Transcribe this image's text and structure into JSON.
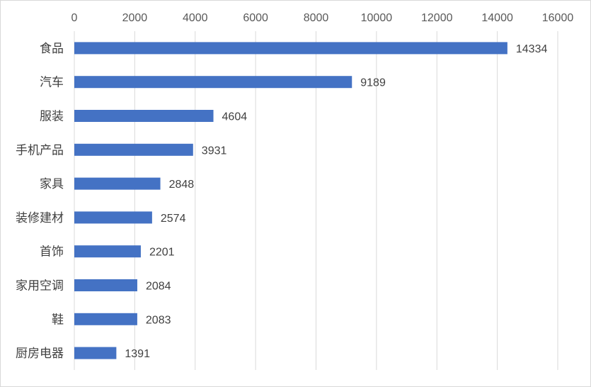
{
  "chart_data": {
    "type": "bar",
    "orientation": "horizontal",
    "categories": [
      "食品",
      "汽车",
      "服装",
      "手机产品",
      "家具",
      "装修建材",
      "首饰",
      "家用空调",
      "鞋",
      "厨房电器"
    ],
    "values": [
      14334,
      9189,
      4604,
      3931,
      2848,
      2574,
      2201,
      2084,
      2083,
      1391
    ],
    "data_labels": [
      "14334",
      "9189",
      "4604",
      "3931",
      "2848",
      "2574",
      "2201",
      "2084",
      "2083",
      "1391"
    ],
    "xlim": [
      0,
      16000
    ],
    "x_ticks": [
      "0",
      "2000",
      "4000",
      "6000",
      "8000",
      "10000",
      "12000",
      "14000",
      "16000"
    ],
    "x_axis_position": "top",
    "grid": "vertical",
    "legend": "none",
    "bar_color": "#4472C4",
    "grid_color": "#d9d9d9",
    "title": "",
    "xlabel": "",
    "ylabel": ""
  }
}
